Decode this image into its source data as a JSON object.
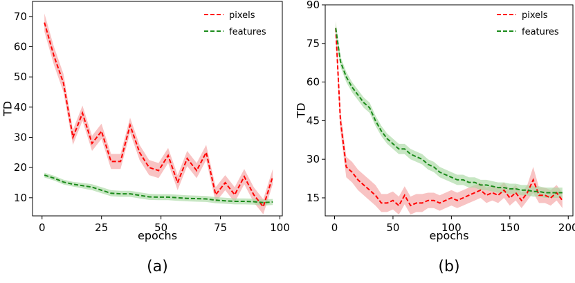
{
  "chart_data": [
    {
      "type": "line",
      "caption": "(a)",
      "xlabel": "epochs",
      "ylabel": "TD",
      "xlim": [
        -4,
        101
      ],
      "ylim": [
        4,
        75
      ],
      "xticks": [
        0,
        25,
        50,
        75,
        100
      ],
      "yticks": [
        10,
        20,
        30,
        40,
        50,
        60,
        70
      ],
      "legend_position": "top-right",
      "series": [
        {
          "name": "pixels",
          "color": "#ff0000",
          "band_color": "#f4a3a3",
          "x": [
            1,
            5,
            9,
            13,
            17,
            21,
            25,
            29,
            33,
            37,
            41,
            45,
            49,
            53,
            57,
            61,
            65,
            69,
            73,
            77,
            81,
            85,
            89,
            93,
            97
          ],
          "y": [
            68,
            57,
            48,
            30,
            38,
            28,
            32,
            22,
            22,
            34,
            25,
            20,
            19,
            24,
            15,
            23,
            19,
            25,
            11,
            15,
            11,
            17,
            11,
            7,
            17
          ],
          "err": [
            3,
            3,
            3,
            2.5,
            2.5,
            2.5,
            2.5,
            2.5,
            2.5,
            2.5,
            2.5,
            2.5,
            2.5,
            2.5,
            2.5,
            2.5,
            2.5,
            2.5,
            2.5,
            2.5,
            2.5,
            2.5,
            2.5,
            2.5,
            2.5
          ]
        },
        {
          "name": "features",
          "color": "#1a8a1a",
          "band_color": "#a9d8a3",
          "x": [
            1,
            5,
            9,
            13,
            17,
            21,
            25,
            29,
            33,
            37,
            41,
            45,
            49,
            53,
            57,
            61,
            65,
            69,
            73,
            77,
            81,
            85,
            89,
            93,
            97
          ],
          "y": [
            17.5,
            16.5,
            15.2,
            14.5,
            14,
            13.5,
            12.5,
            11.5,
            11.3,
            11.3,
            10.8,
            10.3,
            10.2,
            10.2,
            10,
            9.8,
            9.7,
            9.6,
            9.2,
            9,
            8.8,
            8.8,
            8.7,
            8.4,
            8.6
          ],
          "err": [
            0.8,
            0.8,
            0.8,
            0.8,
            0.9,
            1,
            1,
            1,
            1,
            1,
            1,
            1,
            1,
            1,
            1,
            1,
            1,
            1,
            1,
            1,
            1,
            1,
            1,
            1,
            1
          ]
        }
      ]
    },
    {
      "type": "line",
      "caption": "(b)",
      "xlabel": "epochs",
      "ylabel": "TD",
      "xlim": [
        -8,
        204
      ],
      "ylim": [
        8,
        90
      ],
      "xticks": [
        0,
        50,
        100,
        150,
        200
      ],
      "yticks": [
        15,
        30,
        45,
        60,
        75,
        90
      ],
      "legend_position": "top-right",
      "series": [
        {
          "name": "pixels",
          "color": "#ff0000",
          "band_color": "#f4a3a3",
          "x": [
            1,
            5,
            10,
            15,
            20,
            25,
            30,
            35,
            40,
            45,
            50,
            55,
            60,
            65,
            70,
            75,
            80,
            85,
            90,
            95,
            100,
            105,
            110,
            115,
            120,
            125,
            130,
            135,
            140,
            145,
            150,
            155,
            160,
            165,
            170,
            175,
            180,
            185,
            190,
            195
          ],
          "y": [
            81,
            45,
            27,
            25,
            22,
            20,
            18,
            16,
            13,
            13,
            14,
            12,
            16,
            12,
            13,
            13,
            14,
            14,
            13,
            14,
            15,
            14,
            15,
            16,
            17,
            18,
            16,
            17,
            16,
            18,
            15,
            17,
            14,
            17,
            22,
            16,
            16,
            15,
            17,
            14
          ],
          "err": [
            3,
            4,
            4,
            4,
            4,
            4,
            4,
            4,
            3.5,
            3.5,
            3.5,
            3.5,
            3.5,
            3.5,
            3.5,
            3.5,
            3,
            3,
            3,
            3,
            3,
            3,
            3,
            3,
            3,
            3,
            3,
            3,
            3,
            3,
            3,
            3,
            3,
            3,
            5,
            3,
            3,
            3,
            3,
            3
          ]
        },
        {
          "name": "features",
          "color": "#1a8a1a",
          "band_color": "#a9d8a3",
          "x": [
            1,
            5,
            10,
            15,
            20,
            25,
            30,
            35,
            40,
            45,
            50,
            55,
            60,
            65,
            70,
            75,
            80,
            85,
            90,
            95,
            100,
            105,
            110,
            115,
            120,
            125,
            130,
            135,
            140,
            145,
            150,
            155,
            160,
            165,
            170,
            175,
            180,
            185,
            190,
            195
          ],
          "y": [
            81,
            68,
            62,
            58,
            55,
            52,
            50,
            45,
            41,
            38,
            36,
            34,
            34,
            32,
            31,
            30,
            28,
            27,
            25,
            24,
            23,
            22,
            22,
            21,
            21,
            20,
            20,
            19.5,
            19,
            19,
            18.5,
            18.5,
            18,
            18,
            17.5,
            17.5,
            17,
            17,
            17,
            17
          ],
          "err": [
            2.5,
            2,
            2,
            2,
            2,
            2,
            2,
            2,
            2,
            2,
            2,
            2,
            2,
            2,
            2,
            2,
            2,
            2,
            2,
            2,
            2,
            2,
            2,
            2,
            2,
            2,
            2,
            2,
            2,
            2,
            2,
            2,
            2,
            2,
            2,
            2,
            2,
            2,
            2,
            2
          ]
        }
      ]
    }
  ]
}
